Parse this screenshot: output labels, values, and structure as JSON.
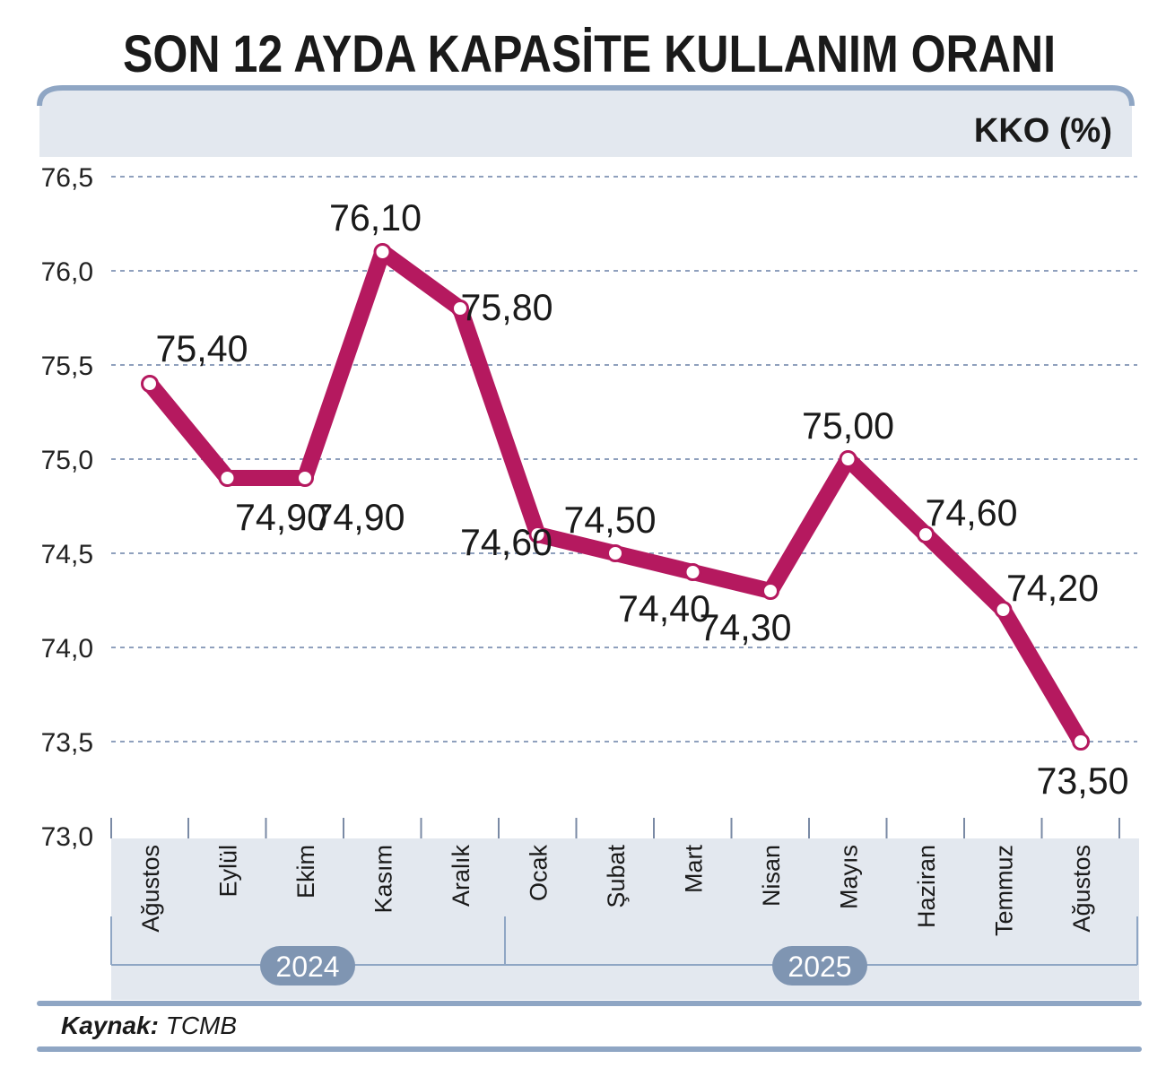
{
  "chart_data": {
    "type": "line",
    "title": "SON 12 AYDA KAPASİTE KULLANIM ORANI",
    "unit_label": "KKO (%)",
    "categories": [
      "Ağustos",
      "Eylül",
      "Ekim",
      "Kasım",
      "Aralık",
      "Ocak",
      "Şubat",
      "Mart",
      "Nisan",
      "Mayıs",
      "Haziran",
      "Temmuz",
      "Ağustos"
    ],
    "values": [
      75.4,
      74.9,
      74.9,
      76.1,
      75.8,
      74.6,
      74.5,
      74.4,
      74.3,
      75.0,
      74.6,
      74.2,
      73.5
    ],
    "value_labels": [
      "75,40",
      "74,90",
      "74,90",
      "76,10",
      "75,80",
      "74,60",
      "74,50",
      "74,40",
      "74,30",
      "75,00",
      "74,60",
      "74,20",
      "73,50"
    ],
    "ylim": [
      73.0,
      76.5
    ],
    "yticks": [
      73.0,
      73.5,
      74.0,
      74.5,
      75.0,
      75.5,
      76.0,
      76.5
    ],
    "ytick_labels": [
      "73,0",
      "73,5",
      "74,0",
      "74,5",
      "75,0",
      "75,5",
      "76,0",
      "76,5"
    ],
    "years": [
      {
        "label": "2024",
        "from_index": 0,
        "to_index": 4
      },
      {
        "label": "2025",
        "from_index": 5,
        "to_index": 12
      }
    ],
    "grid": true,
    "line_color": "#b5195f"
  },
  "source": {
    "label": "Kaynak:",
    "value": "TCMB"
  },
  "colors": {
    "header_band": "#e3e8ef",
    "rule": "#8fa6c4",
    "year_pill": "#7f95b2",
    "grid": "#8fa0bd"
  }
}
